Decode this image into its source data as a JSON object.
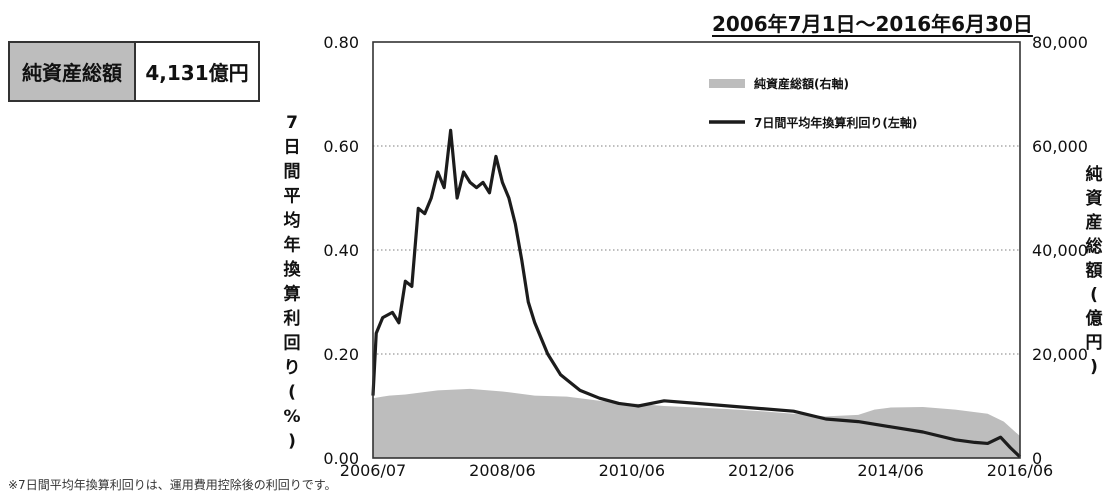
{
  "summary": {
    "nav_label": "純資産総額",
    "nav_value": "4,131億円"
  },
  "period_label": "2006年7月1日～2016年6月30日",
  "footnote": "※7日間平均年換算利回りは、運用費用控除後の利回りです。",
  "chart_data": {
    "type": "line",
    "x_ticks": [
      "2006/07",
      "2008/06",
      "2010/06",
      "2012/06",
      "2014/06",
      "2016/06"
    ],
    "y_left_ticks": [
      "0.00",
      "0.20",
      "0.40",
      "0.60",
      "0.80"
    ],
    "y_right_ticks": [
      "0",
      "20,000",
      "40,000",
      "60,000",
      "80,000"
    ],
    "y_left_label": "7日間平均年換算利回り(%)",
    "y_right_label": "純資産総額(億円)",
    "y_left_lim": [
      0,
      0.8
    ],
    "y_right_lim": [
      0,
      80000
    ],
    "x_lim": [
      2006.5,
      2016.5
    ],
    "grid_lines_y": [
      0.2,
      0.4,
      0.6
    ],
    "legend_position": "top-right",
    "legend": [
      "純資産総額(右軸)",
      "7日間平均年換算利回り(左軸)"
    ],
    "colors": {
      "area": "#bdbdbd",
      "line": "#1c1c1c",
      "grid": "#999999"
    },
    "series": [
      {
        "name": "純資産総額(右軸)",
        "type": "area",
        "axis": "right",
        "x": [
          2006.5,
          2006.75,
          2007.0,
          2007.5,
          2008.0,
          2008.5,
          2009.0,
          2009.5,
          2010.0,
          2010.5,
          2011.0,
          2011.5,
          2012.0,
          2012.5,
          2013.0,
          2013.5,
          2014.0,
          2014.25,
          2014.5,
          2015.0,
          2015.5,
          2016.0,
          2016.25,
          2016.5
        ],
        "values": [
          11500,
          12000,
          12200,
          13000,
          13300,
          12800,
          12000,
          11800,
          11000,
          10500,
          10000,
          9700,
          9400,
          9000,
          8500,
          8000,
          8300,
          9300,
          9700,
          9800,
          9300,
          8500,
          7000,
          4200
        ]
      },
      {
        "name": "7日間平均年換算利回り(左軸)",
        "type": "line",
        "axis": "left",
        "x": [
          2006.5,
          2006.55,
          2006.65,
          2006.8,
          2006.9,
          2007.0,
          2007.1,
          2007.2,
          2007.3,
          2007.4,
          2007.5,
          2007.6,
          2007.7,
          2007.8,
          2007.9,
          2008.0,
          2008.1,
          2008.2,
          2008.3,
          2008.4,
          2008.5,
          2008.6,
          2008.7,
          2008.8,
          2008.9,
          2009.0,
          2009.1,
          2009.2,
          2009.3,
          2009.4,
          2009.5,
          2009.7,
          2010.0,
          2010.3,
          2010.6,
          2011.0,
          2011.5,
          2012.0,
          2012.5,
          2013.0,
          2013.5,
          2014.0,
          2014.5,
          2015.0,
          2015.5,
          2015.8,
          2016.0,
          2016.2,
          2016.35,
          2016.5
        ],
        "values": [
          0.12,
          0.24,
          0.27,
          0.28,
          0.26,
          0.34,
          0.33,
          0.48,
          0.47,
          0.5,
          0.55,
          0.52,
          0.63,
          0.5,
          0.55,
          0.53,
          0.52,
          0.53,
          0.51,
          0.58,
          0.53,
          0.5,
          0.45,
          0.38,
          0.3,
          0.26,
          0.23,
          0.2,
          0.18,
          0.16,
          0.15,
          0.13,
          0.115,
          0.105,
          0.1,
          0.11,
          0.105,
          0.1,
          0.095,
          0.09,
          0.075,
          0.07,
          0.06,
          0.05,
          0.035,
          0.03,
          0.028,
          0.04,
          0.02,
          0.002
        ]
      }
    ]
  }
}
